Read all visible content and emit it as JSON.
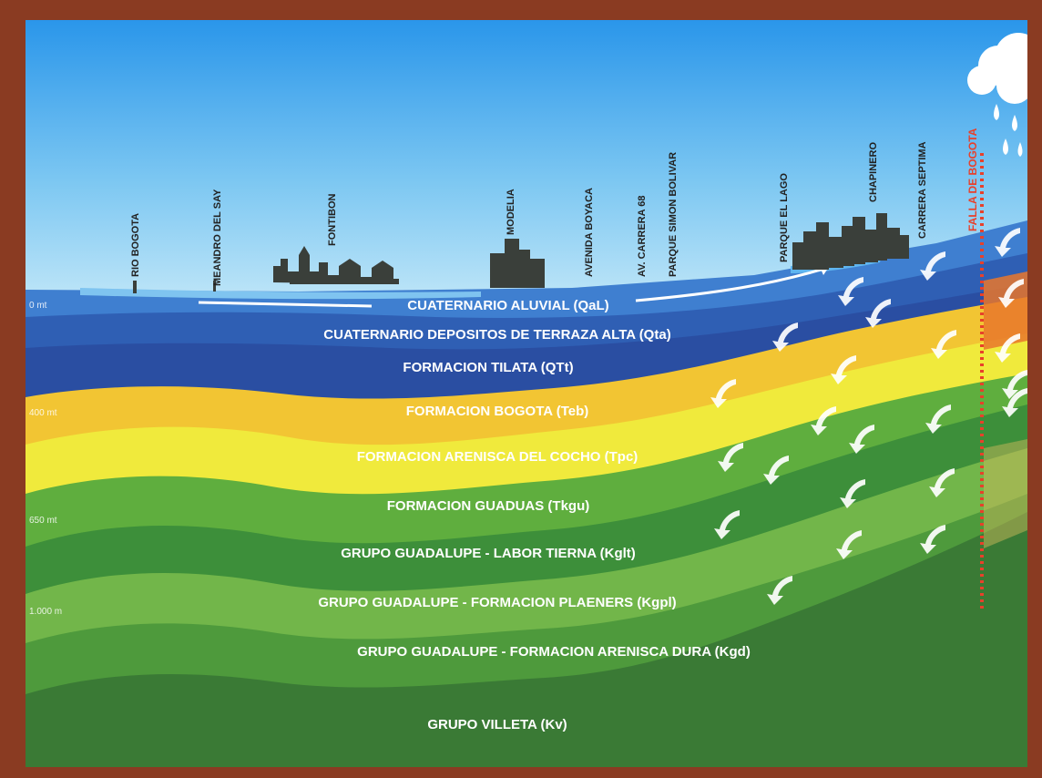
{
  "colors": {
    "frame": "#8a3b22",
    "sky_top": "#2a96ea",
    "sky_bottom": "#b9e4f7",
    "fault": "#e8402a"
  },
  "places": [
    {
      "name": "RIO BOGOTA"
    },
    {
      "name": "MEANDRO DEL SAY"
    },
    {
      "name": "FONTIBON"
    },
    {
      "name": "MODELIA"
    },
    {
      "name": "AVENIDA BOYACA"
    },
    {
      "name": "AV. CARRERA 68"
    },
    {
      "name": "PARQUE SIMON BOLIVAR"
    },
    {
      "name": "PARQUE EL LAGO"
    },
    {
      "name": "CHAPINERO"
    },
    {
      "name": "CARRERA SEPTIMA"
    }
  ],
  "fault_label": "FALLA DE BOGOTA",
  "depths": [
    "0 mt",
    "400 mt",
    "650 mt",
    "1.000 m"
  ],
  "layers": [
    {
      "label": "CUATERNARIO ALUVIAL (QaL)",
      "color": "#3f7fd0"
    },
    {
      "label": "CUATERNARIO DEPOSITOS DE TERRAZA ALTA (Qta)",
      "color": "#2f5fb4"
    },
    {
      "label": "FORMACION TILATA (QTt)",
      "color": "#2a4ea2"
    },
    {
      "label": "FORMACION BOGOTA (Teb)",
      "color": "#f2c533"
    },
    {
      "label": "FORMACION ARENISCA DEL COCHO (Tpc)",
      "color": "#f0ea3c"
    },
    {
      "label": "FORMACION GUADUAS (Tkgu)",
      "color": "#5fae3e"
    },
    {
      "label": "GRUPO GUADALUPE - LABOR TIERNA (Kglt)",
      "color": "#3d8f3a"
    },
    {
      "label": "GRUPO GUADALUPE - FORMACION PLAENERS (Kgpl)",
      "color": "#72b64a"
    },
    {
      "label": "GRUPO GUADALUPE - FORMACION ARENISCA DURA (Kgd)",
      "color": "#4e9a3c"
    },
    {
      "label": "GRUPO VILLETA (Kv)",
      "color": "#3a7a35"
    }
  ]
}
